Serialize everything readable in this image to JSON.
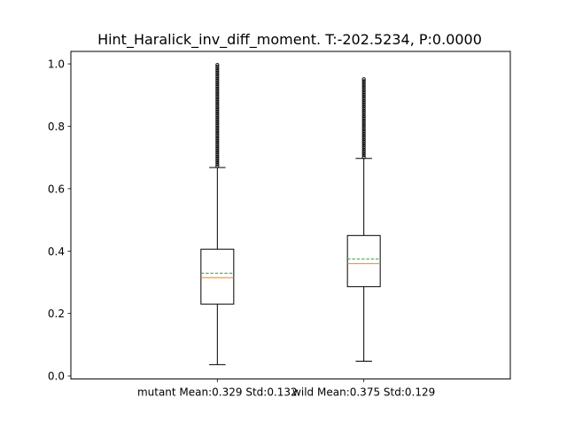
{
  "chart_data": {
    "type": "box",
    "title": "Hint_Haralick_inv_diff_moment. T:-202.5234, P:0.0000",
    "xlabel": "",
    "ylabel": "",
    "ylim": [
      -0.01,
      1.04
    ],
    "yticks": [
      0.0,
      0.2,
      0.4,
      0.6,
      0.8,
      1.0
    ],
    "ytick_labels": [
      "0.0",
      "0.2",
      "0.4",
      "0.6",
      "0.8",
      "1.0"
    ],
    "grid": false,
    "colors": {
      "box": "#000000",
      "median": "#ff7f0e",
      "mean": "#2ca02c"
    },
    "boxes": [
      {
        "label": "mutant Mean:0.329 Std:0.132",
        "whisker_low": 0.036,
        "q1": 0.23,
        "median": 0.315,
        "mean": 0.329,
        "q3": 0.406,
        "whisker_high": 0.668,
        "outliers_low": 0.672,
        "outliers_high": 1.0
      },
      {
        "label": "wild Mean:0.375 Std:0.129",
        "whisker_low": 0.047,
        "q1": 0.286,
        "median": 0.36,
        "mean": 0.375,
        "q3": 0.45,
        "whisker_high": 0.697,
        "outliers_low": 0.701,
        "outliers_high": 0.955
      }
    ]
  }
}
